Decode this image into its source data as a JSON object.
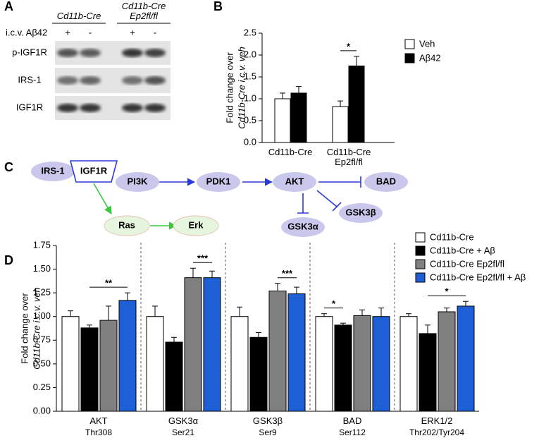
{
  "blot": {
    "panel": "A",
    "groups": [
      "Cd11b-Cre",
      "Cd11b-Cre Ep2fl/fl"
    ],
    "treatment_label": "i.c.v. Aβ42",
    "treatments": [
      "+",
      "-",
      "+",
      "-"
    ],
    "rows": [
      "p-IGF1R",
      "IRS-1",
      "IGF1R"
    ]
  },
  "chart_data": [
    {
      "type": "bar",
      "panel": "B",
      "ylabel": [
        "Fold change over",
        "Cd11b-Cre i.c.v. veh"
      ],
      "categories": [
        "Cd11b-Cre",
        "Cd11b-Cre Ep2fl/fl"
      ],
      "series": [
        {
          "name": "Veh",
          "color": "#ffffff",
          "values": [
            1.0,
            0.82
          ],
          "errors": [
            0.13,
            0.13
          ]
        },
        {
          "name": "Aβ42",
          "color": "#000000",
          "values": [
            1.13,
            1.75
          ],
          "errors": [
            0.15,
            0.22
          ]
        }
      ],
      "ylim": [
        0,
        2.5
      ],
      "yticks": [
        {
          "value": 0,
          "label": "0.0"
        },
        0.5,
        {
          "value": 1,
          "label": "1.0"
        },
        1.5,
        {
          "value": 2,
          "label": "2.0"
        },
        2.5
      ],
      "legend": "right",
      "annotations": [
        {
          "text": "*",
          "category": 1
        }
      ]
    },
    {
      "type": "bar",
      "panel": "D",
      "ylabel": [
        "Fold change over",
        "Cd11b-Cre i.c.v. veh"
      ],
      "categories": [
        "AKT",
        "GSK3α",
        "GSK3β",
        "BAD",
        "ERK1/2"
      ],
      "subcategories": [
        "Thr308",
        "Ser21",
        "Ser9",
        "Ser112",
        "Thr202/Tyr204"
      ],
      "series": [
        {
          "name": "Cd11b-Cre",
          "color": "#ffffff",
          "values": [
            1.0,
            1.0,
            1.0,
            1.0,
            1.0
          ],
          "errors": [
            0.06,
            0.11,
            0.1,
            0.03,
            0.03
          ]
        },
        {
          "name": "Cd11b-Cre + Aβ",
          "color": "#000000",
          "values": [
            0.88,
            0.73,
            0.78,
            0.91,
            0.82
          ],
          "errors": [
            0.03,
            0.05,
            0.05,
            0.02,
            0.09
          ]
        },
        {
          "name": "Cd11b-Cre Ep2fl/fl",
          "color": "#808080",
          "values": [
            0.96,
            1.41,
            1.27,
            1.01,
            1.05
          ],
          "errors": [
            0.15,
            0.1,
            0.08,
            0.06,
            0.04
          ]
        },
        {
          "name": "Cd11b-Cre Ep2fl/fl + Aβ",
          "color": "#1f5fd6",
          "values": [
            1.17,
            1.41,
            1.24,
            1.0,
            1.11
          ],
          "errors": [
            0.08,
            0.07,
            0.07,
            0.09,
            0.05
          ]
        }
      ],
      "ylim": [
        0,
        1.75
      ],
      "yticks": [
        {
          "value": 0,
          "label": "0.00"
        },
        {
          "value": 0.25,
          "label": "0.25"
        },
        {
          "value": 0.5,
          "label": "0.50"
        },
        {
          "value": 0.75,
          "label": "0.75"
        },
        {
          "value": 1,
          "label": "1.00"
        },
        {
          "value": 1.25,
          "label": "1.25"
        },
        {
          "value": 1.5,
          "label": "1.50"
        },
        {
          "value": 1.75,
          "label": "1.75"
        }
      ],
      "legend": "top-right",
      "annotations": [
        {
          "text": "**",
          "category": 0
        },
        {
          "text": "***",
          "category": 1
        },
        {
          "text": "***",
          "category": 2
        },
        {
          "text": "*",
          "category": 3
        },
        {
          "text": "*",
          "category": 4
        }
      ]
    }
  ],
  "pathway": {
    "panel": "C",
    "nodes": [
      "IRS-1",
      "IGF1R",
      "PI3K",
      "PDK1",
      "AKT",
      "BAD",
      "GSK3α",
      "GSK3β",
      "Ras",
      "Erk"
    ]
  }
}
